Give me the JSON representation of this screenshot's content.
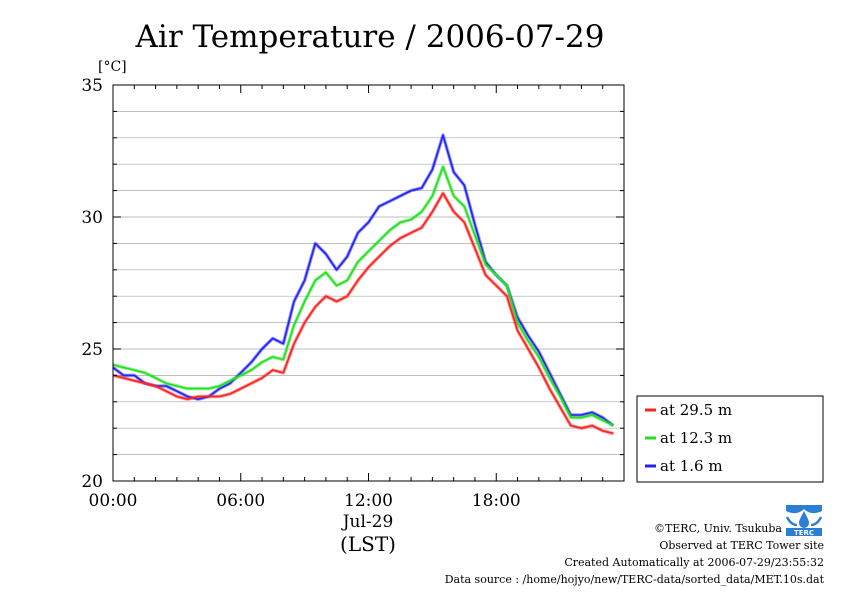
{
  "chart_data": {
    "type": "line",
    "title": "Air Temperature / 2006-07-29",
    "ylabel": "[°C]",
    "xlabel_date": "Jul-29",
    "xlabel_unit": "(LST)",
    "x_unit": "hours",
    "xlim": [
      0,
      24
    ],
    "ylim": [
      20,
      35
    ],
    "x_ticks": [
      {
        "value": 0,
        "label": "00:00"
      },
      {
        "value": 6,
        "label": "06:00"
      },
      {
        "value": 12,
        "label": "12:00"
      },
      {
        "value": 18,
        "label": "18:00"
      }
    ],
    "y_ticks": [
      {
        "value": 20,
        "label": "20"
      },
      {
        "value": 25,
        "label": "25"
      },
      {
        "value": 30,
        "label": "30"
      },
      {
        "value": 35,
        "label": "35"
      }
    ],
    "grid": true,
    "legend_position": "right-bottom",
    "series": [
      {
        "name": "at 29.5 m",
        "color": "#ff2020",
        "x": [
          0,
          0.5,
          1,
          1.5,
          2,
          2.5,
          3,
          3.5,
          4,
          4.5,
          5,
          5.5,
          6,
          6.5,
          7,
          7.5,
          8,
          8.5,
          9,
          9.5,
          10,
          10.5,
          11,
          11.5,
          12,
          12.5,
          13,
          13.5,
          14,
          14.5,
          15,
          15.5,
          16,
          16.5,
          17,
          17.5,
          18,
          18.5,
          19,
          19.5,
          20,
          20.5,
          21,
          21.5,
          22,
          22.5,
          23,
          23.5
        ],
        "y": [
          24.0,
          23.9,
          23.8,
          23.7,
          23.6,
          23.4,
          23.2,
          23.1,
          23.2,
          23.2,
          23.2,
          23.3,
          23.5,
          23.7,
          23.9,
          24.2,
          24.1,
          25.2,
          26.0,
          26.6,
          27.0,
          26.8,
          27.0,
          27.6,
          28.1,
          28.5,
          28.9,
          29.2,
          29.4,
          29.6,
          30.2,
          30.9,
          30.2,
          29.8,
          28.8,
          27.8,
          27.4,
          27.0,
          25.7,
          25.0,
          24.3,
          23.5,
          22.8,
          22.1,
          22.0,
          22.1,
          21.9,
          21.8
        ]
      },
      {
        "name": "at 12.3 m",
        "color": "#20e020",
        "x": [
          0,
          0.5,
          1,
          1.5,
          2,
          2.5,
          3,
          3.5,
          4,
          4.5,
          5,
          5.5,
          6,
          6.5,
          7,
          7.5,
          8,
          8.5,
          9,
          9.5,
          10,
          10.5,
          11,
          11.5,
          12,
          12.5,
          13,
          13.5,
          14,
          14.5,
          15,
          15.5,
          16,
          16.5,
          17,
          17.5,
          18,
          18.5,
          19,
          19.5,
          20,
          20.5,
          21,
          21.5,
          22,
          22.5,
          23,
          23.5
        ],
        "y": [
          24.4,
          24.3,
          24.2,
          24.1,
          23.9,
          23.7,
          23.6,
          23.5,
          23.5,
          23.5,
          23.6,
          23.8,
          24.0,
          24.2,
          24.5,
          24.7,
          24.6,
          25.9,
          26.8,
          27.6,
          27.9,
          27.4,
          27.6,
          28.3,
          28.7,
          29.1,
          29.5,
          29.8,
          29.9,
          30.2,
          30.8,
          31.9,
          30.8,
          30.4,
          29.3,
          28.2,
          27.8,
          27.4,
          26.0,
          25.3,
          24.7,
          23.9,
          23.2,
          22.4,
          22.4,
          22.5,
          22.3,
          22.1
        ]
      },
      {
        "name": "at 1.6 m",
        "color": "#2020ff",
        "x": [
          0,
          0.5,
          1,
          1.5,
          2,
          2.5,
          3,
          3.5,
          4,
          4.5,
          5,
          5.5,
          6,
          6.5,
          7,
          7.5,
          8,
          8.5,
          9,
          9.5,
          10,
          10.5,
          11,
          11.5,
          12,
          12.5,
          13,
          13.5,
          14,
          14.5,
          15,
          15.5,
          16,
          16.5,
          17,
          17.5,
          18,
          18.5,
          19,
          19.5,
          20,
          20.5,
          21,
          21.5,
          22,
          22.5,
          23,
          23.5
        ],
        "y": [
          24.3,
          24.0,
          24.0,
          23.7,
          23.6,
          23.6,
          23.4,
          23.2,
          23.1,
          23.2,
          23.5,
          23.7,
          24.1,
          24.5,
          25.0,
          25.4,
          25.2,
          26.8,
          27.6,
          29.0,
          28.6,
          28.0,
          28.5,
          29.4,
          29.8,
          30.4,
          30.6,
          30.8,
          31.0,
          31.1,
          31.8,
          33.1,
          31.7,
          31.2,
          29.7,
          28.3,
          27.8,
          27.4,
          26.2,
          25.5,
          24.9,
          24.1,
          23.3,
          22.5,
          22.5,
          22.6,
          22.4,
          22.1
        ]
      }
    ]
  },
  "footer": {
    "copyright": "©TERC, Univ. Tsukuba",
    "observed": "Observed at TERC Tower site",
    "created": "Created Automatically at 2006-07-29/23:55:32",
    "source": "Data source : /home/hojyo/new/TERC-data/sorted_data/MET.10s.dat"
  },
  "logo": {
    "text": "TERC",
    "color": "#2a7fd4"
  }
}
